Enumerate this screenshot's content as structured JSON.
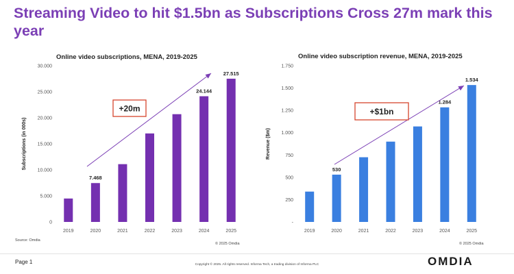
{
  "page_title": "Streaming Video to hit $1.5bn as Subscriptions Cross 27m mark this year",
  "source": "Source: Omdia",
  "page_label": "Page 1",
  "legal": "Copyright © 2025. All rights reserved. Informa Tech, a trading division of Informa PLC",
  "logo_text": "OMDIA",
  "colors": {
    "accent": "#7b3fb5",
    "bar_left": "#7430b0",
    "bar_right": "#3a7fe0",
    "callout_border": "#d5442d"
  },
  "chart_data": [
    {
      "type": "bar",
      "title": "Online video subscriptions, MENA, 2019-2025",
      "ylabel": "Subscriptions (in 000s)",
      "xlabel": "",
      "categories": [
        "2019",
        "2020",
        "2021",
        "2022",
        "2023",
        "2024",
        "2025"
      ],
      "values": [
        4500,
        7468,
        11100,
        17000,
        20700,
        24144,
        27515
      ],
      "data_labels": [
        "",
        "7.468",
        "",
        "",
        "",
        "24.144",
        "27.515"
      ],
      "ylim": [
        0,
        30000
      ],
      "yticks": [
        "0",
        "5.000",
        "10.000",
        "15.000",
        "20.000",
        "25.000",
        "30.000"
      ],
      "annotation": "+20m",
      "copyright": "© 2025 Omdia",
      "grid": false,
      "color": "#7430b0"
    },
    {
      "type": "bar",
      "title": "Online video subscription revenue, MENA, 2019-2025",
      "ylabel": "Revenue ($m)",
      "xlabel": "",
      "categories": [
        "2019",
        "2020",
        "2021",
        "2022",
        "2023",
        "2024",
        "2025"
      ],
      "values": [
        340,
        530,
        725,
        900,
        1070,
        1284,
        1534
      ],
      "data_labels": [
        "",
        "530",
        "",
        "",
        "",
        "1.284",
        "1.534"
      ],
      "ylim": [
        0,
        1750
      ],
      "yticks": [
        "-",
        "250",
        "500",
        "750",
        "1.000",
        "1.250",
        "1.500",
        "1.750"
      ],
      "annotation": "+$1bn",
      "copyright": "© 2025 Omdia",
      "grid": false,
      "color": "#3a7fe0"
    }
  ]
}
